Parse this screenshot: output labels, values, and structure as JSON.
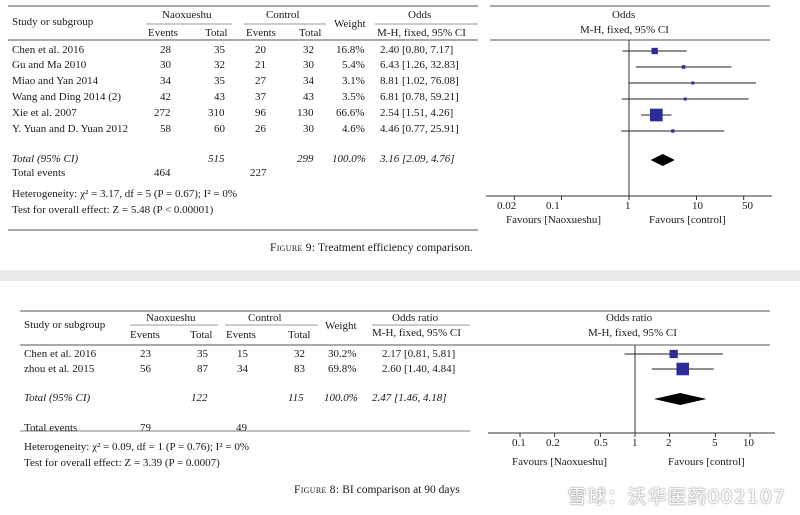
{
  "figure9": {
    "headers": {
      "study": "Study or subgroup",
      "group1": "Naoxueshu",
      "group2": "Control",
      "events": "Events",
      "total": "Total",
      "weight": "Weight",
      "or_title": "Odds",
      "or_sub": "M-H, fixed, 95% CI",
      "plot_title": "Odds",
      "plot_sub": "M-H, fixed, 95% CI"
    },
    "rows": [
      {
        "study": "Chen et al. 2016",
        "e1": "28",
        "n1": "35",
        "e2": "20",
        "n2": "32",
        "weight": "16.8%",
        "ci": "2.40 [0.80, 7.17]"
      },
      {
        "study": "Gu and Ma 2010",
        "e1": "30",
        "n1": "32",
        "e2": "21",
        "n2": "30",
        "weight": "5.4%",
        "ci": "6.43 [1.26, 32.83]"
      },
      {
        "study": "Miao and Yan 2014",
        "e1": "34",
        "n1": "35",
        "e2": "27",
        "n2": "34",
        "weight": "3.1%",
        "ci": "8.81 [1.02, 76.08]"
      },
      {
        "study": "Wang and Ding 2014 (2)",
        "e1": "42",
        "n1": "43",
        "e2": "37",
        "n2": "43",
        "weight": "3.5%",
        "ci": "6.81 [0.78, 59.21]"
      },
      {
        "study": "Xie et al. 2007",
        "e1": "272",
        "n1": "310",
        "e2": "96",
        "n2": "130",
        "weight": "66.6%",
        "ci": "2.54 [1.51, 4.26]"
      },
      {
        "study": "Y. Yuan and D. Yuan 2012",
        "e1": "58",
        "n1": "60",
        "e2": "26",
        "n2": "30",
        "weight": "4.6%",
        "ci": "4.46 [0.77, 25.91]"
      }
    ],
    "total": {
      "label": "Total (95% CI)",
      "n1": "515",
      "n2": "299",
      "weight": "100.0%",
      "ci": "3.16 [2.09, 4.76]"
    },
    "total_events": {
      "label": "Total events",
      "e1": "464",
      "e2": "227"
    },
    "heterogeneity": "Heterogeneity: χ² = 3.17, df = 5 (P = 0.67); I² = 0%",
    "overall": "Test for overall effect: Z = 5.48 (P < 0.00001)",
    "favours_left": "Favours [Naoxueshu]",
    "favours_right": "Favours [control]",
    "caption_label": "Figure 9:",
    "caption_text": "Treatment efficiency comparison."
  },
  "figure8": {
    "headers": {
      "study": "Study or subgroup",
      "group1": "Naoxueshu",
      "group2": "Control",
      "events": "Events",
      "total": "Total",
      "weight": "Weight",
      "or_title": "Odds ratio",
      "or_sub": "M-H, fixed, 95% CI",
      "plot_title": "Odds ratio",
      "plot_sub": "M-H, fixed, 95% CI"
    },
    "rows": [
      {
        "study": "Chen et al. 2016",
        "e1": "23",
        "n1": "35",
        "e2": "15",
        "n2": "32",
        "weight": "30.2%",
        "ci": "2.17 [0.81, 5.81]"
      },
      {
        "study": "zhou et al. 2015",
        "e1": "56",
        "n1": "87",
        "e2": "34",
        "n2": "83",
        "weight": "69.8%",
        "ci": "2.60 [1.40, 4.84]"
      }
    ],
    "total": {
      "label": "Total (95% CI)",
      "n1": "122",
      "n2": "115",
      "weight": "100.0%",
      "ci": "2.47 [1.46, 4.18]"
    },
    "total_events": {
      "label": "Total events",
      "e1": "79",
      "e2": "49"
    },
    "heterogeneity": "Heterogeneity: χ² = 0.09, df = 1 (P = 0.76); I² = 0%",
    "overall": "Test for overall effect: Z = 3.39 (P = 0.0007)",
    "favours_left": "Favours [Naoxueshu]",
    "favours_right": "Favours [control]",
    "caption_label": "Figure 8:",
    "caption_text": "BI comparison at 90 days"
  },
  "watermark": "雪球：沃华医药002107",
  "colors": {
    "marker": "#2b2b9a",
    "diamond": "#000000",
    "rule": "#555555"
  },
  "chart_data": [
    {
      "type": "forest",
      "x_scale": "log",
      "xticks": [
        "0.02",
        "0.1",
        "1",
        "10",
        "50"
      ],
      "null_line": 1,
      "series": [
        {
          "study": "Chen et al. 2016",
          "or": 2.4,
          "lo": 0.8,
          "hi": 7.17,
          "weight": 16.8
        },
        {
          "study": "Gu and Ma 2010",
          "or": 6.43,
          "lo": 1.26,
          "hi": 32.83,
          "weight": 5.4
        },
        {
          "study": "Miao and Yan 2014",
          "or": 8.81,
          "lo": 1.02,
          "hi": 76.08,
          "weight": 3.1
        },
        {
          "study": "Wang and Ding 2014 (2)",
          "or": 6.81,
          "lo": 0.78,
          "hi": 59.21,
          "weight": 3.5
        },
        {
          "study": "Xie et al. 2007",
          "or": 2.54,
          "lo": 1.51,
          "hi": 4.26,
          "weight": 66.6
        },
        {
          "study": "Y. Yuan and D. Yuan 2012",
          "or": 4.46,
          "lo": 0.77,
          "hi": 25.91,
          "weight": 4.6
        }
      ],
      "pooled": {
        "or": 3.16,
        "lo": 2.09,
        "hi": 4.76
      }
    },
    {
      "type": "forest",
      "x_scale": "log",
      "xticks": [
        "0.1",
        "0.2",
        "0.5",
        "1",
        "2",
        "5",
        "10"
      ],
      "null_line": 1,
      "series": [
        {
          "study": "Chen et al. 2016",
          "or": 2.17,
          "lo": 0.81,
          "hi": 5.81,
          "weight": 30.2
        },
        {
          "study": "zhou et al. 2015",
          "or": 2.6,
          "lo": 1.4,
          "hi": 4.84,
          "weight": 69.8
        }
      ],
      "pooled": {
        "or": 2.47,
        "lo": 1.46,
        "hi": 4.18
      }
    }
  ]
}
